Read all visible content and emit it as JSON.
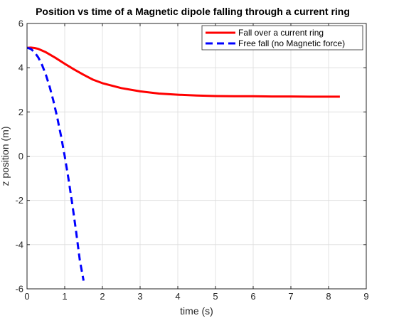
{
  "chart_data": {
    "type": "line",
    "title": "Position vs time of a Magnetic dipole falling through a current ring",
    "xlabel": "time (s)",
    "ylabel": "z position (m)",
    "xlim": [
      0,
      9
    ],
    "ylim": [
      -6,
      6
    ],
    "xticks": [
      "0",
      "1",
      "2",
      "3",
      "4",
      "5",
      "6",
      "7",
      "8",
      "9"
    ],
    "yticks": [
      "-6",
      "-4",
      "-2",
      "0",
      "2",
      "4",
      "6"
    ],
    "grid": true,
    "legend_position": "top-right",
    "series": [
      {
        "name": "Fall over a current ring",
        "color": "#ff0000",
        "style": "solid",
        "x": [
          0,
          0.1,
          0.2,
          0.3,
          0.5,
          0.75,
          1.0,
          1.25,
          1.5,
          1.75,
          2.0,
          2.5,
          3.0,
          3.5,
          4.0,
          4.5,
          5.0,
          5.5,
          6.0,
          6.5,
          7.0,
          7.5,
          8.0,
          8.3
        ],
        "y": [
          4.9,
          4.91,
          4.89,
          4.85,
          4.7,
          4.45,
          4.18,
          3.92,
          3.68,
          3.46,
          3.3,
          3.08,
          2.93,
          2.83,
          2.78,
          2.74,
          2.72,
          2.71,
          2.71,
          2.7,
          2.7,
          2.69,
          2.69,
          2.69
        ]
      },
      {
        "name": "Free fall (no Magnetic force)",
        "color": "#0000ff",
        "style": "dashed",
        "x": [
          0,
          0.1,
          0.2,
          0.3,
          0.4,
          0.5,
          0.6,
          0.7,
          0.8,
          0.9,
          1.0,
          1.1,
          1.2,
          1.3,
          1.4,
          1.5
        ],
        "y": [
          4.9,
          4.85,
          4.7,
          4.46,
          4.12,
          3.68,
          3.14,
          2.5,
          1.76,
          0.93,
          0.0,
          -1.03,
          -2.16,
          -3.38,
          -4.7,
          -5.63
        ]
      }
    ]
  }
}
